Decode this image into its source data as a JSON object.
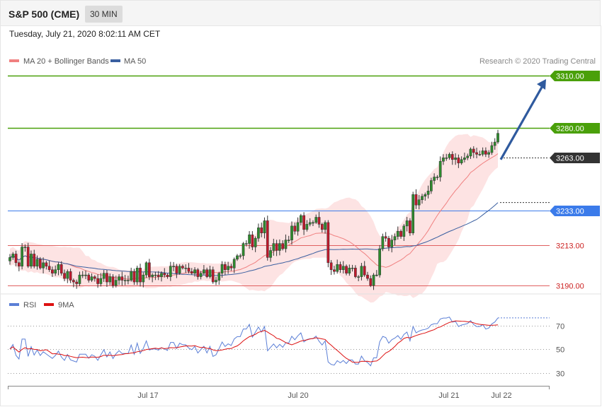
{
  "header": {
    "title": "S&P 500 (CME)",
    "interval": "30 MIN"
  },
  "datetime": "Tuesday, July 21, 2020 8:02:11 AM CET",
  "legend": {
    "ma20": {
      "label": "MA 20 + Bollinger Bands",
      "color": "#f08080"
    },
    "ma50": {
      "label": "MA 50",
      "color": "#3a5fa0"
    }
  },
  "credit": "Research © 2020 Trading Central",
  "rsi_legend": {
    "rsi": {
      "label": "RSI",
      "color": "#5b7fd6"
    },
    "ma9": {
      "label": "9MA",
      "color": "#dd1111"
    }
  },
  "chart_data": [
    {
      "type": "candlestick",
      "title": "S&P 500 (CME)",
      "timeframe": "30 MIN",
      "ylim": [
        3184,
        3316
      ],
      "x_ticks": [
        "Jul 17",
        "Jul 20",
        "Jul 21",
        "Jul 22"
      ],
      "levels": [
        {
          "value": 3310.0,
          "label": "3310.00",
          "color": "#4aa00a",
          "style": "resistance"
        },
        {
          "value": 3280.0,
          "label": "3280.00",
          "color": "#4aa00a",
          "style": "resistance"
        },
        {
          "value": 3263.0,
          "label": "3263.00",
          "color": "#333333",
          "style": "last-price"
        },
        {
          "value": 3233.0,
          "label": "3233.00",
          "color": "#3b7bea",
          "style": "pivot"
        },
        {
          "value": 3213.0,
          "label": "3213.00",
          "color": "#e06060",
          "style": "support"
        },
        {
          "value": 3190.0,
          "label": "3190.00",
          "color": "#e06060",
          "style": "support"
        }
      ],
      "forecast_arrow": {
        "from": 3262,
        "to": 3308
      },
      "closes_approx": [
        3206,
        3208,
        3203,
        3201,
        3212,
        3212,
        3201,
        3208,
        3201,
        3205,
        3200,
        3203,
        3201,
        3199,
        3197,
        3199,
        3202,
        3197,
        3194,
        3198,
        3193,
        3192,
        3191,
        3196,
        3196,
        3196,
        3193,
        3195,
        3194,
        3191,
        3194,
        3197,
        3192,
        3195,
        3190,
        3193,
        3195,
        3193,
        3193,
        3193,
        3198,
        3192,
        3200,
        3192,
        3196,
        3203,
        3195,
        3196,
        3196,
        3195,
        3197,
        3196,
        3195,
        3201,
        3201,
        3197,
        3201,
        3200,
        3200,
        3198,
        3197,
        3199,
        3195,
        3197,
        3199,
        3195,
        3199,
        3192,
        3193,
        3197,
        3202,
        3199,
        3201,
        3200,
        3205,
        3207,
        3207,
        3214,
        3214,
        3219,
        3212,
        3217,
        3223,
        3220,
        3227,
        3206,
        3210,
        3214,
        3210,
        3214,
        3211,
        3216,
        3216,
        3224,
        3221,
        3226,
        3230,
        3222,
        3225,
        3226,
        3226,
        3229,
        3225,
        3222,
        3226,
        3203,
        3199,
        3198,
        3202,
        3199,
        3201,
        3197,
        3200,
        3200,
        3195,
        3195,
        3201,
        3196,
        3194,
        3190,
        3196,
        3196,
        3211,
        3218,
        3217,
        3212,
        3216,
        3218,
        3221,
        3218,
        3224,
        3227,
        3220,
        3242,
        3236,
        3239,
        3241,
        3242,
        3244,
        3250,
        3252,
        3252,
        3261,
        3263,
        3263,
        3265,
        3262,
        3263,
        3260,
        3262,
        3263,
        3264,
        3268,
        3266,
        3265,
        3265,
        3267,
        3265,
        3266,
        3270,
        3272,
        3277
      ]
    },
    {
      "type": "line",
      "title": "RSI",
      "ylim": [
        20,
        90
      ],
      "y_ticks": [
        30,
        50,
        70
      ],
      "series": [
        {
          "name": "RSI",
          "last": 80
        },
        {
          "name": "9MA",
          "last": 73
        }
      ]
    }
  ]
}
